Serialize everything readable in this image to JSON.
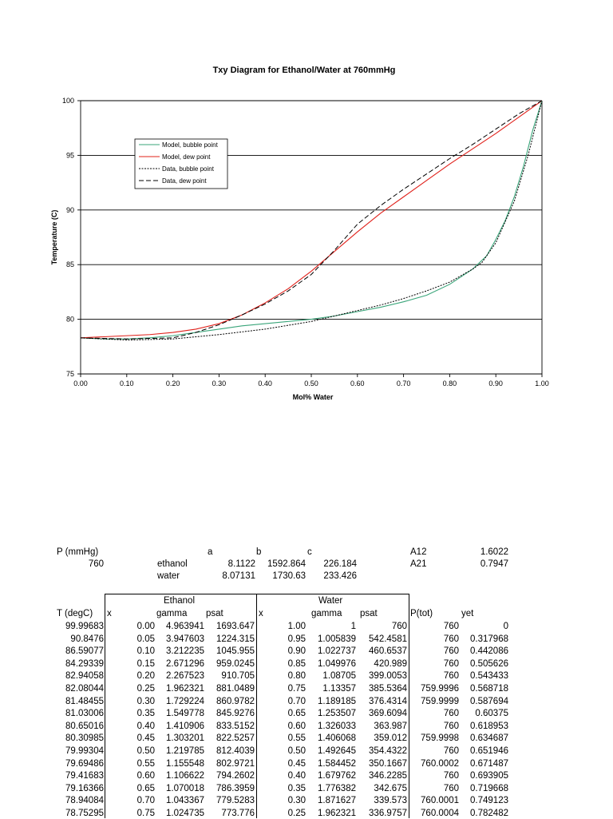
{
  "chart_data": {
    "type": "line",
    "title": "Txy Diagram for Ethanol/Water at 760mmHg",
    "xlabel": "Mol% Water",
    "ylabel": "Temperature (C)",
    "xlim": [
      0,
      1
    ],
    "ylim": [
      75,
      100
    ],
    "xticks": [
      "0.00",
      "0.10",
      "0.20",
      "0.30",
      "0.40",
      "0.50",
      "0.60",
      "0.70",
      "0.80",
      "0.90",
      "1.00"
    ],
    "yticks": [
      "75",
      "80",
      "85",
      "90",
      "95",
      "100"
    ],
    "grid": "horizontal",
    "legend_position": "upper-left",
    "series": [
      {
        "name": "Model, bubble point",
        "color": "#3aa57a",
        "style": "solid",
        "x": [
          0,
          0.05,
          0.1,
          0.15,
          0.2,
          0.25,
          0.3,
          0.35,
          0.4,
          0.45,
          0.5,
          0.55,
          0.6,
          0.65,
          0.7,
          0.75,
          0.8,
          0.85,
          0.88,
          0.9,
          0.92,
          0.94,
          0.96,
          0.98,
          1.0
        ],
        "y": [
          78.3,
          78.2,
          78.2,
          78.3,
          78.5,
          78.8,
          79.1,
          79.4,
          79.6,
          79.8,
          80.0,
          80.3,
          80.7,
          81.1,
          81.6,
          82.2,
          83.2,
          84.6,
          85.8,
          87.3,
          89.0,
          91.2,
          94.0,
          97.3,
          100
        ]
      },
      {
        "name": "Model, dew point",
        "color": "#e0201a",
        "style": "solid",
        "x": [
          0,
          0.05,
          0.1,
          0.15,
          0.2,
          0.25,
          0.3,
          0.35,
          0.4,
          0.45,
          0.5,
          0.55,
          0.6,
          0.65,
          0.7,
          0.75,
          0.8,
          0.85,
          0.9,
          0.95,
          1.0
        ],
        "y": [
          78.3,
          78.4,
          78.5,
          78.6,
          78.8,
          79.1,
          79.6,
          80.4,
          81.5,
          82.8,
          84.4,
          86.2,
          88.0,
          89.7,
          91.2,
          92.7,
          94.2,
          95.6,
          97.0,
          98.5,
          100
        ]
      },
      {
        "name": "Data, bubble point",
        "color": "#000000",
        "style": "dotted",
        "x": [
          0,
          0.1,
          0.2,
          0.3,
          0.4,
          0.5,
          0.55,
          0.6,
          0.65,
          0.7,
          0.75,
          0.8,
          0.85,
          0.87,
          0.9,
          0.94,
          0.97,
          1.0
        ],
        "y": [
          78.3,
          78.1,
          78.2,
          78.6,
          79.1,
          79.8,
          80.3,
          80.8,
          81.3,
          81.9,
          82.6,
          83.4,
          84.6,
          85.2,
          87.0,
          90.8,
          95.0,
          100
        ]
      },
      {
        "name": "Data, dew point",
        "color": "#000000",
        "style": "dashed",
        "x": [
          0,
          0.1,
          0.2,
          0.25,
          0.3,
          0.35,
          0.4,
          0.45,
          0.5,
          0.55,
          0.6,
          0.65,
          0.7,
          0.75,
          0.8,
          0.85,
          0.9,
          0.95,
          1.0
        ],
        "y": [
          78.3,
          78.2,
          78.3,
          78.8,
          79.5,
          80.4,
          81.4,
          82.6,
          84.1,
          86.3,
          88.7,
          90.4,
          91.9,
          93.3,
          94.7,
          96.0,
          97.4,
          98.8,
          100
        ]
      }
    ]
  },
  "params": {
    "p_label": "P (mmHg)",
    "p_value": "760",
    "col_a": "a",
    "col_b": "b",
    "col_c": "c",
    "ethanol_label": "ethanol",
    "ethanol_a": "8.1122",
    "ethanol_b": "1592.864",
    "ethanol_c": "226.184",
    "water_label": "water",
    "water_a": "8.07131",
    "water_b": "1730.63",
    "water_c": "233.426",
    "a12_label": "A12",
    "a12_value": "1.6022",
    "a21_label": "A21",
    "a21_value": "0.7947"
  },
  "table": {
    "group_ethanol": "Ethanol",
    "group_water": "Water",
    "headers": [
      "T (degC)",
      "x",
      "gamma",
      "psat",
      "x",
      "gamma",
      "psat",
      "P(tot)",
      "yet"
    ],
    "rows": [
      [
        "99.99683",
        "0.00",
        "4.963941",
        "1693.647",
        "1.00",
        "1",
        "760",
        "760",
        "0"
      ],
      [
        "90.8476",
        "0.05",
        "3.947603",
        "1224.315",
        "0.95",
        "1.005839",
        "542.4581",
        "760",
        "0.317968"
      ],
      [
        "86.59077",
        "0.10",
        "3.212235",
        "1045.955",
        "0.90",
        "1.022737",
        "460.6537",
        "760",
        "0.442086"
      ],
      [
        "84.29339",
        "0.15",
        "2.671296",
        "959.0245",
        "0.85",
        "1.049976",
        "420.989",
        "760",
        "0.505626"
      ],
      [
        "82.94058",
        "0.20",
        "2.267523",
        "910.705",
        "0.80",
        "1.08705",
        "399.0053",
        "760",
        "0.543433"
      ],
      [
        "82.08044",
        "0.25",
        "1.962321",
        "881.0489",
        "0.75",
        "1.13357",
        "385.5364",
        "759.9996",
        "0.568718"
      ],
      [
        "81.48455",
        "0.30",
        "1.729224",
        "860.9782",
        "0.70",
        "1.189185",
        "376.4314",
        "759.9999",
        "0.587694"
      ],
      [
        "81.03006",
        "0.35",
        "1.549778",
        "845.9276",
        "0.65",
        "1.253507",
        "369.6094",
        "760",
        "0.60375"
      ],
      [
        "80.65016",
        "0.40",
        "1.410906",
        "833.5152",
        "0.60",
        "1.326033",
        "363.987",
        "760",
        "0.618953"
      ],
      [
        "80.30985",
        "0.45",
        "1.303201",
        "822.5257",
        "0.55",
        "1.406068",
        "359.012",
        "759.9998",
        "0.634687"
      ],
      [
        "79.99304",
        "0.50",
        "1.219785",
        "812.4039",
        "0.50",
        "1.492645",
        "354.4322",
        "760",
        "0.651946"
      ],
      [
        "79.69486",
        "0.55",
        "1.155548",
        "802.9721",
        "0.45",
        "1.584452",
        "350.1667",
        "760.0002",
        "0.671487"
      ],
      [
        "79.41683",
        "0.60",
        "1.106622",
        "794.2602",
        "0.40",
        "1.679762",
        "346.2285",
        "760",
        "0.693905"
      ],
      [
        "79.16366",
        "0.65",
        "1.070018",
        "786.3959",
        "0.35",
        "1.776382",
        "342.675",
        "760",
        "0.719668"
      ],
      [
        "78.94084",
        "0.70",
        "1.043367",
        "779.5283",
        "0.30",
        "1.871627",
        "339.573",
        "760.0001",
        "0.749123"
      ],
      [
        "78.75295",
        "0.75",
        "1.024735",
        "773.776",
        "0.25",
        "1.962321",
        "336.9757",
        "760.0004",
        "0.782482"
      ]
    ]
  }
}
